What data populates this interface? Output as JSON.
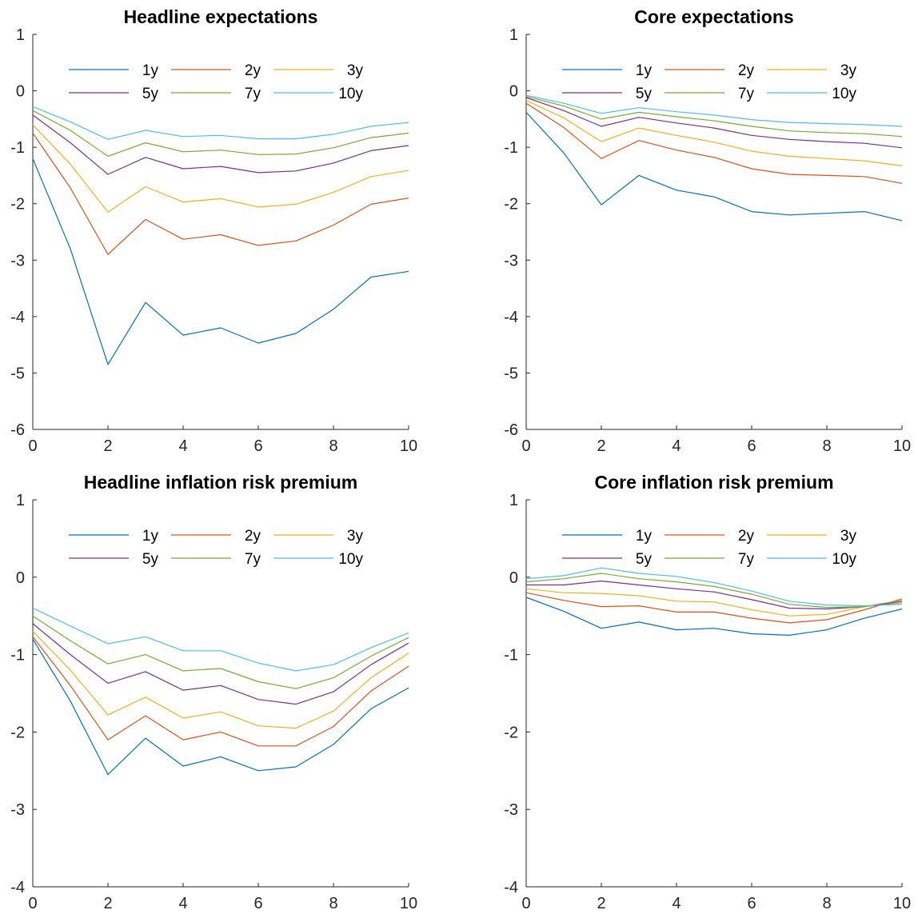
{
  "chart_data": [
    {
      "type": "line",
      "title": "Headline expectations",
      "xlabel": "",
      "ylabel": "",
      "xlim": [
        0,
        10
      ],
      "ylim": [
        -6,
        1
      ],
      "xticks": [
        "0",
        "2",
        "4",
        "6",
        "8",
        "10"
      ],
      "yticks": [
        "1",
        "0",
        "-1",
        "-2",
        "-3",
        "-4",
        "-5",
        "-6"
      ],
      "grid": false,
      "legend_placement": "top",
      "x": [
        0,
        1,
        2,
        3,
        4,
        5,
        6,
        7,
        8,
        9,
        10
      ],
      "series": [
        {
          "name": "1y",
          "color": "#0072BD",
          "values": [
            -1.2,
            -2.8,
            -4.85,
            -3.75,
            -4.33,
            -4.2,
            -4.47,
            -4.3,
            -3.87,
            -3.3,
            -3.2
          ]
        },
        {
          "name": "2y",
          "color": "#D95319",
          "values": [
            -0.75,
            -1.72,
            -2.9,
            -2.28,
            -2.63,
            -2.55,
            -2.74,
            -2.66,
            -2.38,
            -2.01,
            -1.9
          ]
        },
        {
          "name": "3y",
          "color": "#EDB120",
          "values": [
            -0.6,
            -1.3,
            -2.15,
            -1.7,
            -1.97,
            -1.91,
            -2.06,
            -2.01,
            -1.8,
            -1.52,
            -1.41
          ]
        },
        {
          "name": "5y",
          "color": "#7E2F8E",
          "values": [
            -0.43,
            -0.92,
            -1.48,
            -1.18,
            -1.38,
            -1.34,
            -1.45,
            -1.42,
            -1.28,
            -1.06,
            -0.97
          ]
        },
        {
          "name": "7y",
          "color": "#77AC30",
          "values": [
            -0.35,
            -0.7,
            -1.16,
            -0.92,
            -1.08,
            -1.05,
            -1.13,
            -1.12,
            -1.01,
            -0.83,
            -0.75
          ]
        },
        {
          "name": "10y",
          "color": "#4DBEEE",
          "values": [
            -0.28,
            -0.55,
            -0.86,
            -0.7,
            -0.81,
            -0.79,
            -0.85,
            -0.85,
            -0.77,
            -0.63,
            -0.56
          ]
        }
      ]
    },
    {
      "type": "line",
      "title": "Core expectations",
      "xlabel": "",
      "ylabel": "",
      "xlim": [
        0,
        10
      ],
      "ylim": [
        -6,
        1
      ],
      "xticks": [
        "0",
        "2",
        "4",
        "6",
        "8",
        "10"
      ],
      "yticks": [
        "1",
        "0",
        "-1",
        "-2",
        "-3",
        "-4",
        "-5",
        "-6"
      ],
      "grid": false,
      "legend_placement": "top",
      "x": [
        0,
        1,
        2,
        3,
        4,
        5,
        6,
        7,
        8,
        9,
        10
      ],
      "series": [
        {
          "name": "1y",
          "color": "#0072BD",
          "values": [
            -0.38,
            -1.1,
            -2.02,
            -1.5,
            -1.76,
            -1.88,
            -2.14,
            -2.2,
            -2.17,
            -2.14,
            -2.3
          ]
        },
        {
          "name": "2y",
          "color": "#D95319",
          "values": [
            -0.22,
            -0.65,
            -1.2,
            -0.88,
            -1.05,
            -1.18,
            -1.38,
            -1.48,
            -1.5,
            -1.52,
            -1.64
          ]
        },
        {
          "name": "3y",
          "color": "#EDB120",
          "values": [
            -0.17,
            -0.48,
            -0.9,
            -0.66,
            -0.79,
            -0.91,
            -1.07,
            -1.16,
            -1.2,
            -1.24,
            -1.33
          ]
        },
        {
          "name": "5y",
          "color": "#7E2F8E",
          "values": [
            -0.12,
            -0.35,
            -0.63,
            -0.47,
            -0.57,
            -0.66,
            -0.79,
            -0.86,
            -0.9,
            -0.93,
            -1.01
          ]
        },
        {
          "name": "7y",
          "color": "#77AC30",
          "values": [
            -0.1,
            -0.27,
            -0.5,
            -0.38,
            -0.46,
            -0.53,
            -0.63,
            -0.71,
            -0.74,
            -0.76,
            -0.81
          ]
        },
        {
          "name": "10y",
          "color": "#4DBEEE",
          "values": [
            -0.08,
            -0.22,
            -0.4,
            -0.3,
            -0.37,
            -0.43,
            -0.51,
            -0.56,
            -0.58,
            -0.6,
            -0.63
          ]
        }
      ]
    },
    {
      "type": "line",
      "title": "Headline inflation risk premium",
      "xlabel": "",
      "ylabel": "",
      "xlim": [
        0,
        10
      ],
      "ylim": [
        -4,
        1
      ],
      "xticks": [
        "0",
        "2",
        "4",
        "6",
        "8",
        "10"
      ],
      "yticks": [
        "1",
        "0",
        "-1",
        "-2",
        "-3",
        "-4"
      ],
      "grid": false,
      "legend_placement": "top",
      "x": [
        0,
        1,
        2,
        3,
        4,
        5,
        6,
        7,
        8,
        9,
        10
      ],
      "series": [
        {
          "name": "1y",
          "color": "#0072BD",
          "values": [
            -0.8,
            -1.6,
            -2.55,
            -2.08,
            -2.44,
            -2.32,
            -2.5,
            -2.45,
            -2.16,
            -1.7,
            -1.43
          ]
        },
        {
          "name": "2y",
          "color": "#D95319",
          "values": [
            -0.77,
            -1.4,
            -2.1,
            -1.79,
            -2.1,
            -2.0,
            -2.18,
            -2.18,
            -1.93,
            -1.47,
            -1.15
          ]
        },
        {
          "name": "3y",
          "color": "#EDB120",
          "values": [
            -0.7,
            -1.2,
            -1.78,
            -1.55,
            -1.82,
            -1.74,
            -1.92,
            -1.95,
            -1.73,
            -1.3,
            -0.98
          ]
        },
        {
          "name": "5y",
          "color": "#7E2F8E",
          "values": [
            -0.6,
            -1.0,
            -1.37,
            -1.22,
            -1.46,
            -1.4,
            -1.58,
            -1.64,
            -1.48,
            -1.13,
            -0.85
          ]
        },
        {
          "name": "7y",
          "color": "#77AC30",
          "values": [
            -0.5,
            -0.82,
            -1.12,
            -1.0,
            -1.21,
            -1.18,
            -1.35,
            -1.44,
            -1.3,
            -1.02,
            -0.78
          ]
        },
        {
          "name": "10y",
          "color": "#4DBEEE",
          "values": [
            -0.4,
            -0.63,
            -0.86,
            -0.77,
            -0.95,
            -0.95,
            -1.11,
            -1.21,
            -1.13,
            -0.91,
            -0.72
          ]
        }
      ]
    },
    {
      "type": "line",
      "title": "Core inflation risk premium",
      "xlabel": "",
      "ylabel": "",
      "xlim": [
        0,
        10
      ],
      "ylim": [
        -4,
        1
      ],
      "xticks": [
        "0",
        "2",
        "4",
        "6",
        "8",
        "10"
      ],
      "yticks": [
        "1",
        "0",
        "-1",
        "-2",
        "-3",
        "-4"
      ],
      "grid": false,
      "legend_placement": "top",
      "x": [
        0,
        1,
        2,
        3,
        4,
        5,
        6,
        7,
        8,
        9,
        10
      ],
      "series": [
        {
          "name": "1y",
          "color": "#0072BD",
          "values": [
            -0.26,
            -0.44,
            -0.66,
            -0.58,
            -0.68,
            -0.66,
            -0.73,
            -0.75,
            -0.68,
            -0.53,
            -0.41
          ]
        },
        {
          "name": "2y",
          "color": "#D95319",
          "values": [
            -0.2,
            -0.3,
            -0.38,
            -0.37,
            -0.45,
            -0.45,
            -0.53,
            -0.59,
            -0.55,
            -0.42,
            -0.28
          ]
        },
        {
          "name": "3y",
          "color": "#EDB120",
          "values": [
            -0.15,
            -0.2,
            -0.21,
            -0.24,
            -0.31,
            -0.32,
            -0.42,
            -0.5,
            -0.48,
            -0.38,
            -0.3
          ]
        },
        {
          "name": "5y",
          "color": "#7E2F8E",
          "values": [
            -0.1,
            -0.1,
            -0.05,
            -0.1,
            -0.15,
            -0.19,
            -0.29,
            -0.4,
            -0.41,
            -0.38,
            -0.31
          ]
        },
        {
          "name": "7y",
          "color": "#77AC30",
          "values": [
            -0.06,
            -0.02,
            0.05,
            -0.02,
            -0.06,
            -0.12,
            -0.22,
            -0.35,
            -0.39,
            -0.38,
            -0.33
          ]
        },
        {
          "name": "10y",
          "color": "#4DBEEE",
          "values": [
            -0.02,
            0.02,
            0.12,
            0.05,
            0.01,
            -0.07,
            -0.18,
            -0.31,
            -0.36,
            -0.37,
            -0.35
          ]
        }
      ]
    }
  ]
}
